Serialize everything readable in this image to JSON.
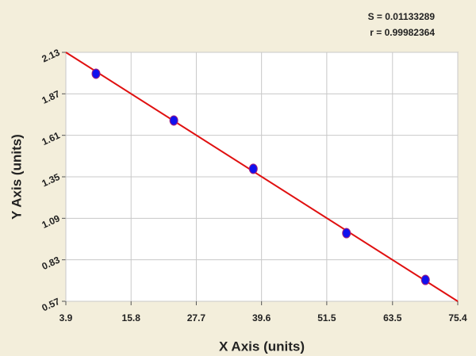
{
  "chart_data": {
    "type": "scatter",
    "x_label": "X Axis (units)",
    "y_label": "Y Axis (units)",
    "annotations": [
      "S = 0.01133289",
      "r = 0.99982364"
    ],
    "xlim": [
      3.9,
      75.4
    ],
    "xticks": [
      3.9,
      15.8,
      27.7,
      39.6,
      51.5,
      63.5,
      75.4
    ],
    "ylim": [
      0.57,
      2.13
    ],
    "yticks": [
      0.57,
      0.83,
      1.09,
      1.35,
      1.61,
      1.87,
      2.13
    ],
    "grid": true,
    "series": [
      {
        "color": "#1010ee",
        "mode": "points",
        "x": [
          9.4,
          23.6,
          38.1,
          55.1,
          69.5
        ],
        "values": [
          1.996,
          1.703,
          1.4,
          0.997,
          0.704
        ]
      },
      {
        "color": "#e01010",
        "mode": "line",
        "x": [
          3.9,
          75.4
        ],
        "values": [
          2.13,
          0.57
        ]
      }
    ]
  }
}
